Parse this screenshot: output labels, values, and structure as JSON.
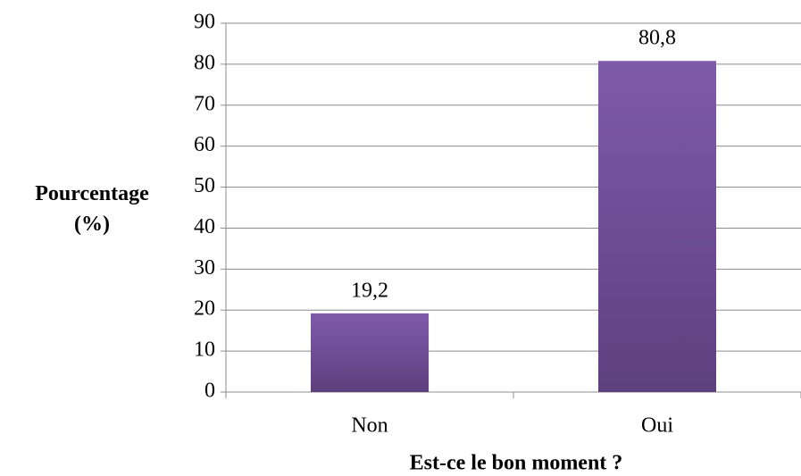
{
  "chart_data": {
    "type": "bar",
    "x_label": "Est-ce le bon moment ?",
    "y_label": "Pourcentage (%)",
    "categories": [
      "Non",
      "Oui"
    ],
    "values": [
      19.2,
      80.8
    ],
    "value_labels": [
      "19,2",
      "80,8"
    ],
    "color": [
      "#7f5aab",
      "#5d407e"
    ],
    "ylim": [
      0,
      90
    ],
    "yticks": [
      0,
      10,
      20,
      30,
      40,
      50,
      60,
      70,
      80,
      90
    ],
    "grid": true
  }
}
